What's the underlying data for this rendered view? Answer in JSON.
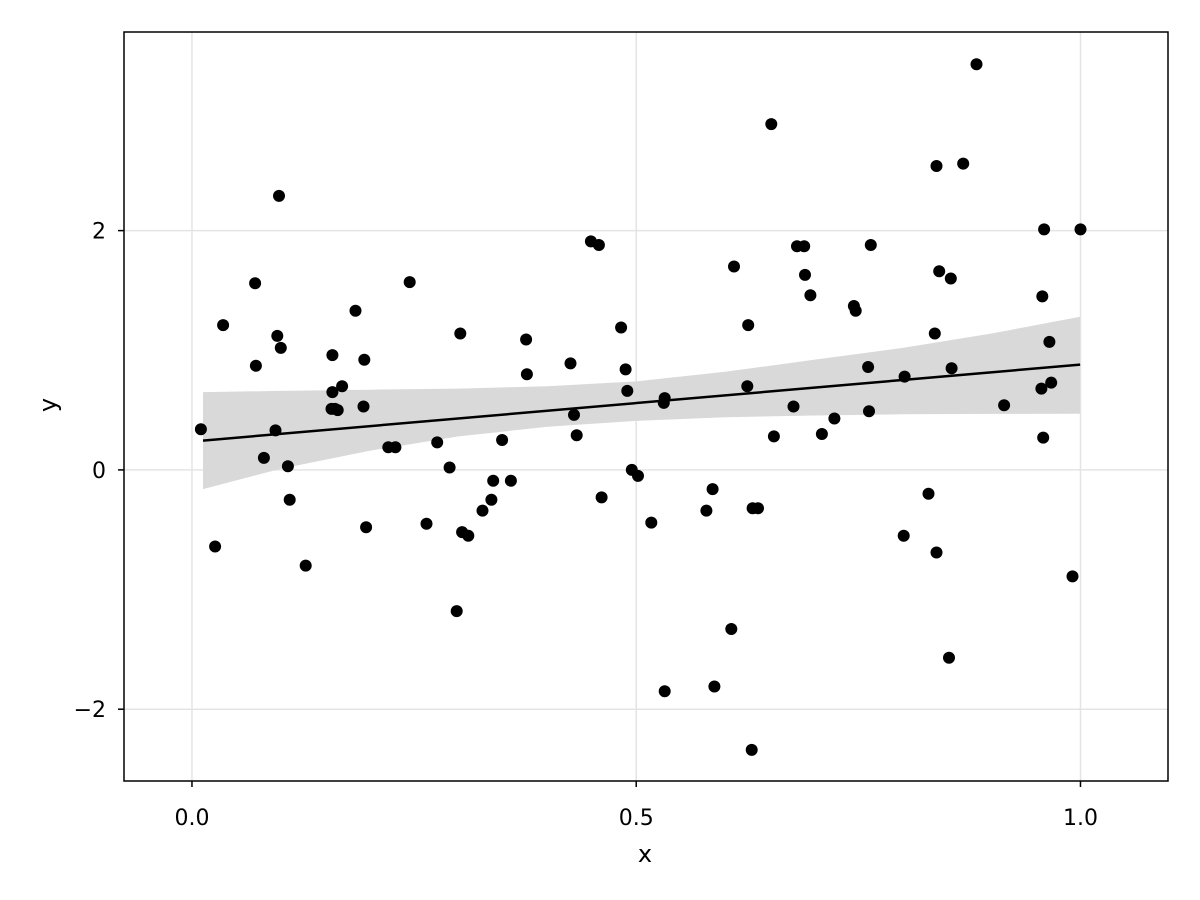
{
  "chart_data": {
    "type": "scatter",
    "title": "",
    "xlabel": "x",
    "ylabel": "y",
    "xlim": [
      -0.0765,
      1.0985
    ],
    "ylim": [
      -2.6,
      3.66
    ],
    "grid": true,
    "legend": "none",
    "x_ticks": [
      {
        "value": 0.0,
        "label": "0.0"
      },
      {
        "value": 0.5,
        "label": "0.5"
      },
      {
        "value": 1.0,
        "label": "1.0"
      }
    ],
    "y_ticks": [
      {
        "value": -2,
        "label": "−2"
      },
      {
        "value": 0,
        "label": "0"
      },
      {
        "value": 2,
        "label": "2"
      }
    ],
    "colors": {
      "points": "#000000",
      "fit_line": "#000000",
      "band": "#d9d9d9",
      "grid": "#e4e4e4",
      "frame": "#000000"
    },
    "points": [
      [
        0.01,
        0.34
      ],
      [
        0.026,
        -0.64
      ],
      [
        0.035,
        1.21
      ],
      [
        0.071,
        1.56
      ],
      [
        0.072,
        0.87
      ],
      [
        0.081,
        0.1
      ],
      [
        0.094,
        0.33
      ],
      [
        0.096,
        1.12
      ],
      [
        0.098,
        2.29
      ],
      [
        0.1,
        1.02
      ],
      [
        0.108,
        0.03
      ],
      [
        0.11,
        -0.25
      ],
      [
        0.128,
        -0.8
      ],
      [
        0.157,
        0.51
      ],
      [
        0.158,
        0.65
      ],
      [
        0.158,
        0.96
      ],
      [
        0.161,
        0.51
      ],
      [
        0.164,
        0.5
      ],
      [
        0.169,
        0.7
      ],
      [
        0.184,
        1.33
      ],
      [
        0.193,
        0.53
      ],
      [
        0.194,
        0.92
      ],
      [
        0.196,
        -0.48
      ],
      [
        0.221,
        0.19
      ],
      [
        0.229,
        0.19
      ],
      [
        0.245,
        1.57
      ],
      [
        0.264,
        -0.45
      ],
      [
        0.276,
        0.23
      ],
      [
        0.29,
        0.02
      ],
      [
        0.298,
        -1.18
      ],
      [
        0.302,
        1.14
      ],
      [
        0.304,
        -0.52
      ],
      [
        0.311,
        -0.55
      ],
      [
        0.327,
        -0.34
      ],
      [
        0.337,
        -0.25
      ],
      [
        0.339,
        -0.09
      ],
      [
        0.349,
        0.25
      ],
      [
        0.359,
        -0.09
      ],
      [
        0.376,
        1.09
      ],
      [
        0.377,
        0.8
      ],
      [
        0.426,
        0.89
      ],
      [
        0.43,
        0.46
      ],
      [
        0.433,
        0.29
      ],
      [
        0.449,
        1.91
      ],
      [
        0.458,
        1.88
      ],
      [
        0.461,
        -0.23
      ],
      [
        0.483,
        1.19
      ],
      [
        0.488,
        0.84
      ],
      [
        0.49,
        0.66
      ],
      [
        0.495,
        0.0
      ],
      [
        0.502,
        -0.05
      ],
      [
        0.517,
        -0.44
      ],
      [
        0.531,
        0.56
      ],
      [
        0.532,
        0.6
      ],
      [
        0.532,
        -1.85
      ],
      [
        0.579,
        -0.34
      ],
      [
        0.586,
        -0.16
      ],
      [
        0.588,
        -1.81
      ],
      [
        0.607,
        -1.33
      ],
      [
        0.61,
        1.7
      ],
      [
        0.625,
        0.7
      ],
      [
        0.626,
        1.21
      ],
      [
        0.63,
        -2.34
      ],
      [
        0.631,
        -0.32
      ],
      [
        0.637,
        -0.32
      ],
      [
        0.652,
        2.89
      ],
      [
        0.655,
        0.28
      ],
      [
        0.677,
        0.53
      ],
      [
        0.681,
        1.87
      ],
      [
        0.689,
        1.87
      ],
      [
        0.69,
        1.63
      ],
      [
        0.696,
        1.46
      ],
      [
        0.709,
        0.3
      ],
      [
        0.723,
        0.43
      ],
      [
        0.745,
        1.37
      ],
      [
        0.747,
        1.33
      ],
      [
        0.761,
        0.86
      ],
      [
        0.762,
        0.49
      ],
      [
        0.764,
        1.88
      ],
      [
        0.801,
        -0.55
      ],
      [
        0.802,
        0.78
      ],
      [
        0.829,
        -0.2
      ],
      [
        0.836,
        1.14
      ],
      [
        0.838,
        -0.69
      ],
      [
        0.838,
        2.54
      ],
      [
        0.841,
        1.66
      ],
      [
        0.852,
        -1.57
      ],
      [
        0.854,
        1.6
      ],
      [
        0.855,
        0.85
      ],
      [
        0.868,
        2.56
      ],
      [
        0.883,
        3.39
      ],
      [
        0.914,
        0.54
      ],
      [
        0.956,
        0.68
      ],
      [
        0.957,
        1.45
      ],
      [
        0.958,
        0.27
      ],
      [
        0.959,
        2.01
      ],
      [
        0.965,
        1.07
      ],
      [
        0.967,
        0.73
      ],
      [
        0.991,
        -0.89
      ],
      [
        1.0,
        2.01
      ]
    ],
    "fit_line": {
      "x": [
        0.0124,
        0.9996
      ],
      "y": [
        0.245,
        0.88
      ]
    },
    "confidence_band": {
      "x": [
        0.0124,
        0.1,
        0.2,
        0.3,
        0.4,
        0.5,
        0.6,
        0.7,
        0.8,
        0.9,
        0.9996
      ],
      "upper": [
        0.65,
        0.66,
        0.67,
        0.68,
        0.7,
        0.74,
        0.82,
        0.92,
        1.02,
        1.14,
        1.28
      ],
      "lower": [
        -0.16,
        0.01,
        0.16,
        0.28,
        0.36,
        0.41,
        0.44,
        0.455,
        0.465,
        0.468,
        0.47
      ]
    }
  }
}
